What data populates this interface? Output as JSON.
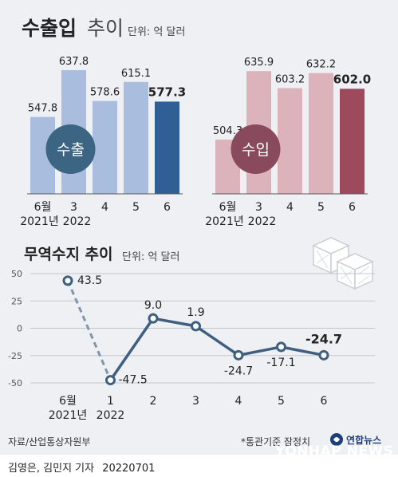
{
  "header": {
    "title_bold": "수출입",
    "title_light": "추이",
    "unit": "단위: 억 달러"
  },
  "export_chart": {
    "badge": "수출"
  },
  "import_chart": {
    "badge": "수입"
  },
  "trade": {
    "title": "무역수지 추이",
    "unit": "단위: 억 달러"
  },
  "footer": {
    "source": "자료/산업통상자원부",
    "note": "*통관기준 잠정치",
    "reporter": "김영은, 김민지 기자",
    "date": "20220701",
    "logo": "연합뉴스",
    "watermark": "YONHAP NEWS"
  },
  "colors": {
    "export_bar": "#a9bddf",
    "export_last": "#2f5f94",
    "export_badge": "#3c6483",
    "import_bar": "#dcb2bb",
    "import_last": "#9c4a5c",
    "import_badge": "#8a4a5d",
    "trade_line": "#3e5f7f"
  },
  "chart_data": [
    {
      "type": "bar",
      "series": [
        {
          "name": "수출",
          "values": [
            547.8,
            637.8,
            578.6,
            615.1,
            577.3
          ]
        }
      ],
      "categories": [
        "6월",
        "3",
        "4",
        "5",
        "6"
      ],
      "year_labels": [
        "2021년",
        "2022"
      ]
    },
    {
      "type": "bar",
      "series": [
        {
          "name": "수입",
          "values": [
            504.3,
            635.9,
            603.2,
            632.2,
            602.0
          ]
        }
      ],
      "categories": [
        "6월",
        "3",
        "4",
        "5",
        "6"
      ],
      "year_labels": [
        "2021년",
        "2022"
      ]
    },
    {
      "type": "line",
      "categories": [
        "6월",
        "1",
        "2",
        "3",
        "4",
        "5",
        "6"
      ],
      "year_labels": [
        "2021년",
        "2022"
      ],
      "values": [
        43.5,
        -47.5,
        9.0,
        1.9,
        -24.7,
        -17.1,
        -24.7
      ],
      "value_labels": [
        "43.5",
        "-47.5",
        "9.0",
        "1.9",
        "-24.7",
        "-17.1",
        "-24.7"
      ],
      "yticks": [
        50,
        25,
        0,
        -25,
        -50
      ],
      "ylim": [
        -50,
        50
      ],
      "grid": true
    }
  ]
}
